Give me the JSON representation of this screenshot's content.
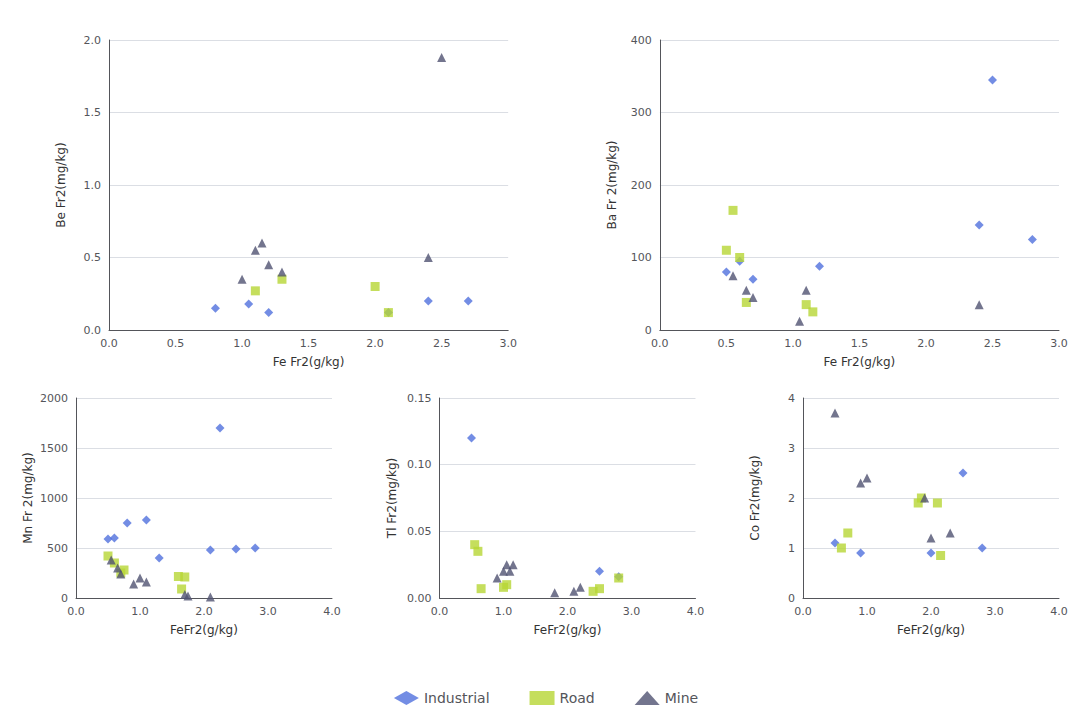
{
  "chart_data": [
    {
      "type": "scatter",
      "xlabel": "Fe Fr2(g/kg)",
      "ylabel": "Be Fr2(mg/kg)",
      "xlim": [
        0.0,
        3.0
      ],
      "ylim": [
        0,
        2.0
      ],
      "xticks": [
        {
          "value": 0,
          "label": "0.0"
        },
        0.5,
        {
          "value": 1,
          "label": "1.0"
        },
        1.5,
        {
          "value": 2,
          "label": "2.0"
        },
        2.5,
        {
          "value": 3,
          "label": "3.0"
        }
      ],
      "yticks": [
        {
          "value": 0,
          "label": "0.0"
        },
        0.5,
        {
          "value": 1,
          "label": "1.0"
        },
        1.5,
        {
          "value": 2,
          "label": "2.0"
        }
      ],
      "grid": "y",
      "legend": "bottom",
      "series": [
        {
          "name": "Industrial",
          "marker": "diamond",
          "x": [
            0.8,
            1.05,
            1.2,
            2.1,
            2.4,
            2.7
          ],
          "values": [
            0.15,
            0.18,
            0.12,
            0.12,
            0.2,
            0.2
          ]
        },
        {
          "name": "Road",
          "marker": "square",
          "x": [
            1.1,
            1.3,
            2.0,
            2.1
          ],
          "values": [
            0.27,
            0.35,
            0.3,
            0.12
          ]
        },
        {
          "name": "Mine",
          "marker": "triangle",
          "x": [
            1.0,
            1.1,
            1.15,
            1.2,
            1.3,
            2.4,
            2.5
          ],
          "values": [
            0.35,
            0.55,
            0.6,
            0.45,
            0.4,
            0.5,
            1.88
          ]
        }
      ]
    },
    {
      "type": "scatter",
      "xlabel": "Fe Fr2(g/kg)",
      "ylabel": "Ba Fr 2(mg/kg)",
      "xlim": [
        0.0,
        3.0
      ],
      "ylim": [
        0,
        400
      ],
      "xticks": [
        {
          "value": 0,
          "label": "0.0"
        },
        0.5,
        {
          "value": 1,
          "label": "1.0"
        },
        1.5,
        {
          "value": 2,
          "label": "2.0"
        },
        2.5,
        {
          "value": 3,
          "label": "3.0"
        }
      ],
      "yticks": [
        0,
        100,
        200,
        300,
        400
      ],
      "grid": "y",
      "legend": "bottom",
      "series": [
        {
          "name": "Industrial",
          "marker": "diamond",
          "x": [
            0.5,
            0.6,
            0.7,
            1.2,
            2.4,
            2.5,
            2.8
          ],
          "values": [
            80,
            95,
            70,
            88,
            145,
            345,
            125
          ]
        },
        {
          "name": "Road",
          "marker": "square",
          "x": [
            0.5,
            0.55,
            0.6,
            0.65,
            1.1,
            1.15
          ],
          "values": [
            110,
            165,
            100,
            38,
            35,
            25
          ]
        },
        {
          "name": "Mine",
          "marker": "triangle",
          "x": [
            0.55,
            0.65,
            0.7,
            1.05,
            1.1,
            2.4
          ],
          "values": [
            75,
            55,
            45,
            12,
            55,
            35
          ]
        }
      ]
    },
    {
      "type": "scatter",
      "xlabel": "FeFr2(g/kg)",
      "ylabel": "Mn Fr 2(mg/kg)",
      "xlim": [
        0.0,
        4.0
      ],
      "ylim": [
        0,
        2000
      ],
      "xticks": [
        {
          "value": 0,
          "label": "0.0"
        },
        {
          "value": 1,
          "label": "1.0"
        },
        {
          "value": 2,
          "label": "2.0"
        },
        {
          "value": 3,
          "label": "3.0"
        },
        {
          "value": 4,
          "label": "4.0"
        }
      ],
      "yticks": [
        0,
        500,
        1000,
        1500,
        2000
      ],
      "grid": "y",
      "legend": "bottom",
      "series": [
        {
          "name": "Industrial",
          "marker": "diamond",
          "x": [
            0.5,
            0.6,
            0.8,
            1.1,
            1.3,
            2.1,
            2.25,
            2.5,
            2.8
          ],
          "values": [
            590,
            600,
            750,
            780,
            400,
            480,
            1700,
            490,
            500
          ]
        },
        {
          "name": "Road",
          "marker": "square",
          "x": [
            0.5,
            0.6,
            0.7,
            0.75,
            1.6,
            1.65,
            1.7
          ],
          "values": [
            420,
            350,
            250,
            280,
            215,
            90,
            210
          ]
        },
        {
          "name": "Mine",
          "marker": "triangle",
          "x": [
            0.55,
            0.65,
            0.7,
            0.9,
            1.0,
            1.1,
            1.7,
            1.75,
            2.1
          ],
          "values": [
            380,
            300,
            240,
            140,
            200,
            160,
            35,
            20,
            10
          ]
        }
      ]
    },
    {
      "type": "scatter",
      "xlabel": "FeFr2(g/kg)",
      "ylabel": "Tl Fr2(mg/kg)",
      "xlim": [
        0.0,
        4.0
      ],
      "ylim": [
        0,
        0.15
      ],
      "xticks": [
        {
          "value": 0,
          "label": "0.0"
        },
        {
          "value": 1,
          "label": "1.0"
        },
        {
          "value": 2,
          "label": "2.0"
        },
        {
          "value": 3,
          "label": "3.0"
        },
        {
          "value": 4,
          "label": "4.0"
        }
      ],
      "yticks": [
        {
          "value": 0,
          "label": "0.00"
        },
        0.05,
        {
          "value": 0.1,
          "label": "0.10"
        },
        0.15
      ],
      "grid": "y",
      "legend": "bottom",
      "series": [
        {
          "name": "Industrial",
          "marker": "diamond",
          "x": [
            0.5,
            2.5,
            2.8
          ],
          "values": [
            0.12,
            0.02,
            0.016
          ]
        },
        {
          "name": "Road",
          "marker": "square",
          "x": [
            0.55,
            0.6,
            0.65,
            1.0,
            1.05,
            2.4,
            2.5,
            2.8
          ],
          "values": [
            0.04,
            0.035,
            0.007,
            0.008,
            0.01,
            0.005,
            0.007,
            0.015
          ]
        },
        {
          "name": "Mine",
          "marker": "triangle",
          "x": [
            0.9,
            1.0,
            1.05,
            1.1,
            1.15,
            1.8,
            2.1,
            2.2
          ],
          "values": [
            0.015,
            0.02,
            0.025,
            0.02,
            0.025,
            0.004,
            0.005,
            0.008
          ]
        }
      ]
    },
    {
      "type": "scatter",
      "xlabel": "FeFr2(g/kg)",
      "ylabel": "Co Fr2(mg/kg)",
      "xlim": [
        0.0,
        4.0
      ],
      "ylim": [
        0,
        4
      ],
      "xticks": [
        {
          "value": 0,
          "label": "0.0"
        },
        {
          "value": 1,
          "label": "1.0"
        },
        {
          "value": 2,
          "label": "2.0"
        },
        {
          "value": 3,
          "label": "3.0"
        },
        {
          "value": 4,
          "label": "4.0"
        }
      ],
      "yticks": [
        0,
        1,
        2,
        3,
        4
      ],
      "grid": "y",
      "legend": "bottom",
      "series": [
        {
          "name": "Industrial",
          "marker": "diamond",
          "x": [
            0.5,
            0.9,
            2.0,
            2.5,
            2.8
          ],
          "values": [
            1.1,
            0.9,
            0.9,
            2.5,
            1.0
          ]
        },
        {
          "name": "Road",
          "marker": "square",
          "x": [
            0.6,
            0.7,
            1.8,
            1.85,
            2.1,
            2.15
          ],
          "values": [
            1.0,
            1.3,
            1.9,
            2.0,
            1.9,
            0.85
          ]
        },
        {
          "name": "Mine",
          "marker": "triangle",
          "x": [
            0.5,
            0.9,
            1.0,
            1.9,
            2.0,
            2.3
          ],
          "values": [
            3.7,
            2.3,
            2.4,
            2.0,
            1.2,
            1.3
          ]
        }
      ]
    }
  ]
}
